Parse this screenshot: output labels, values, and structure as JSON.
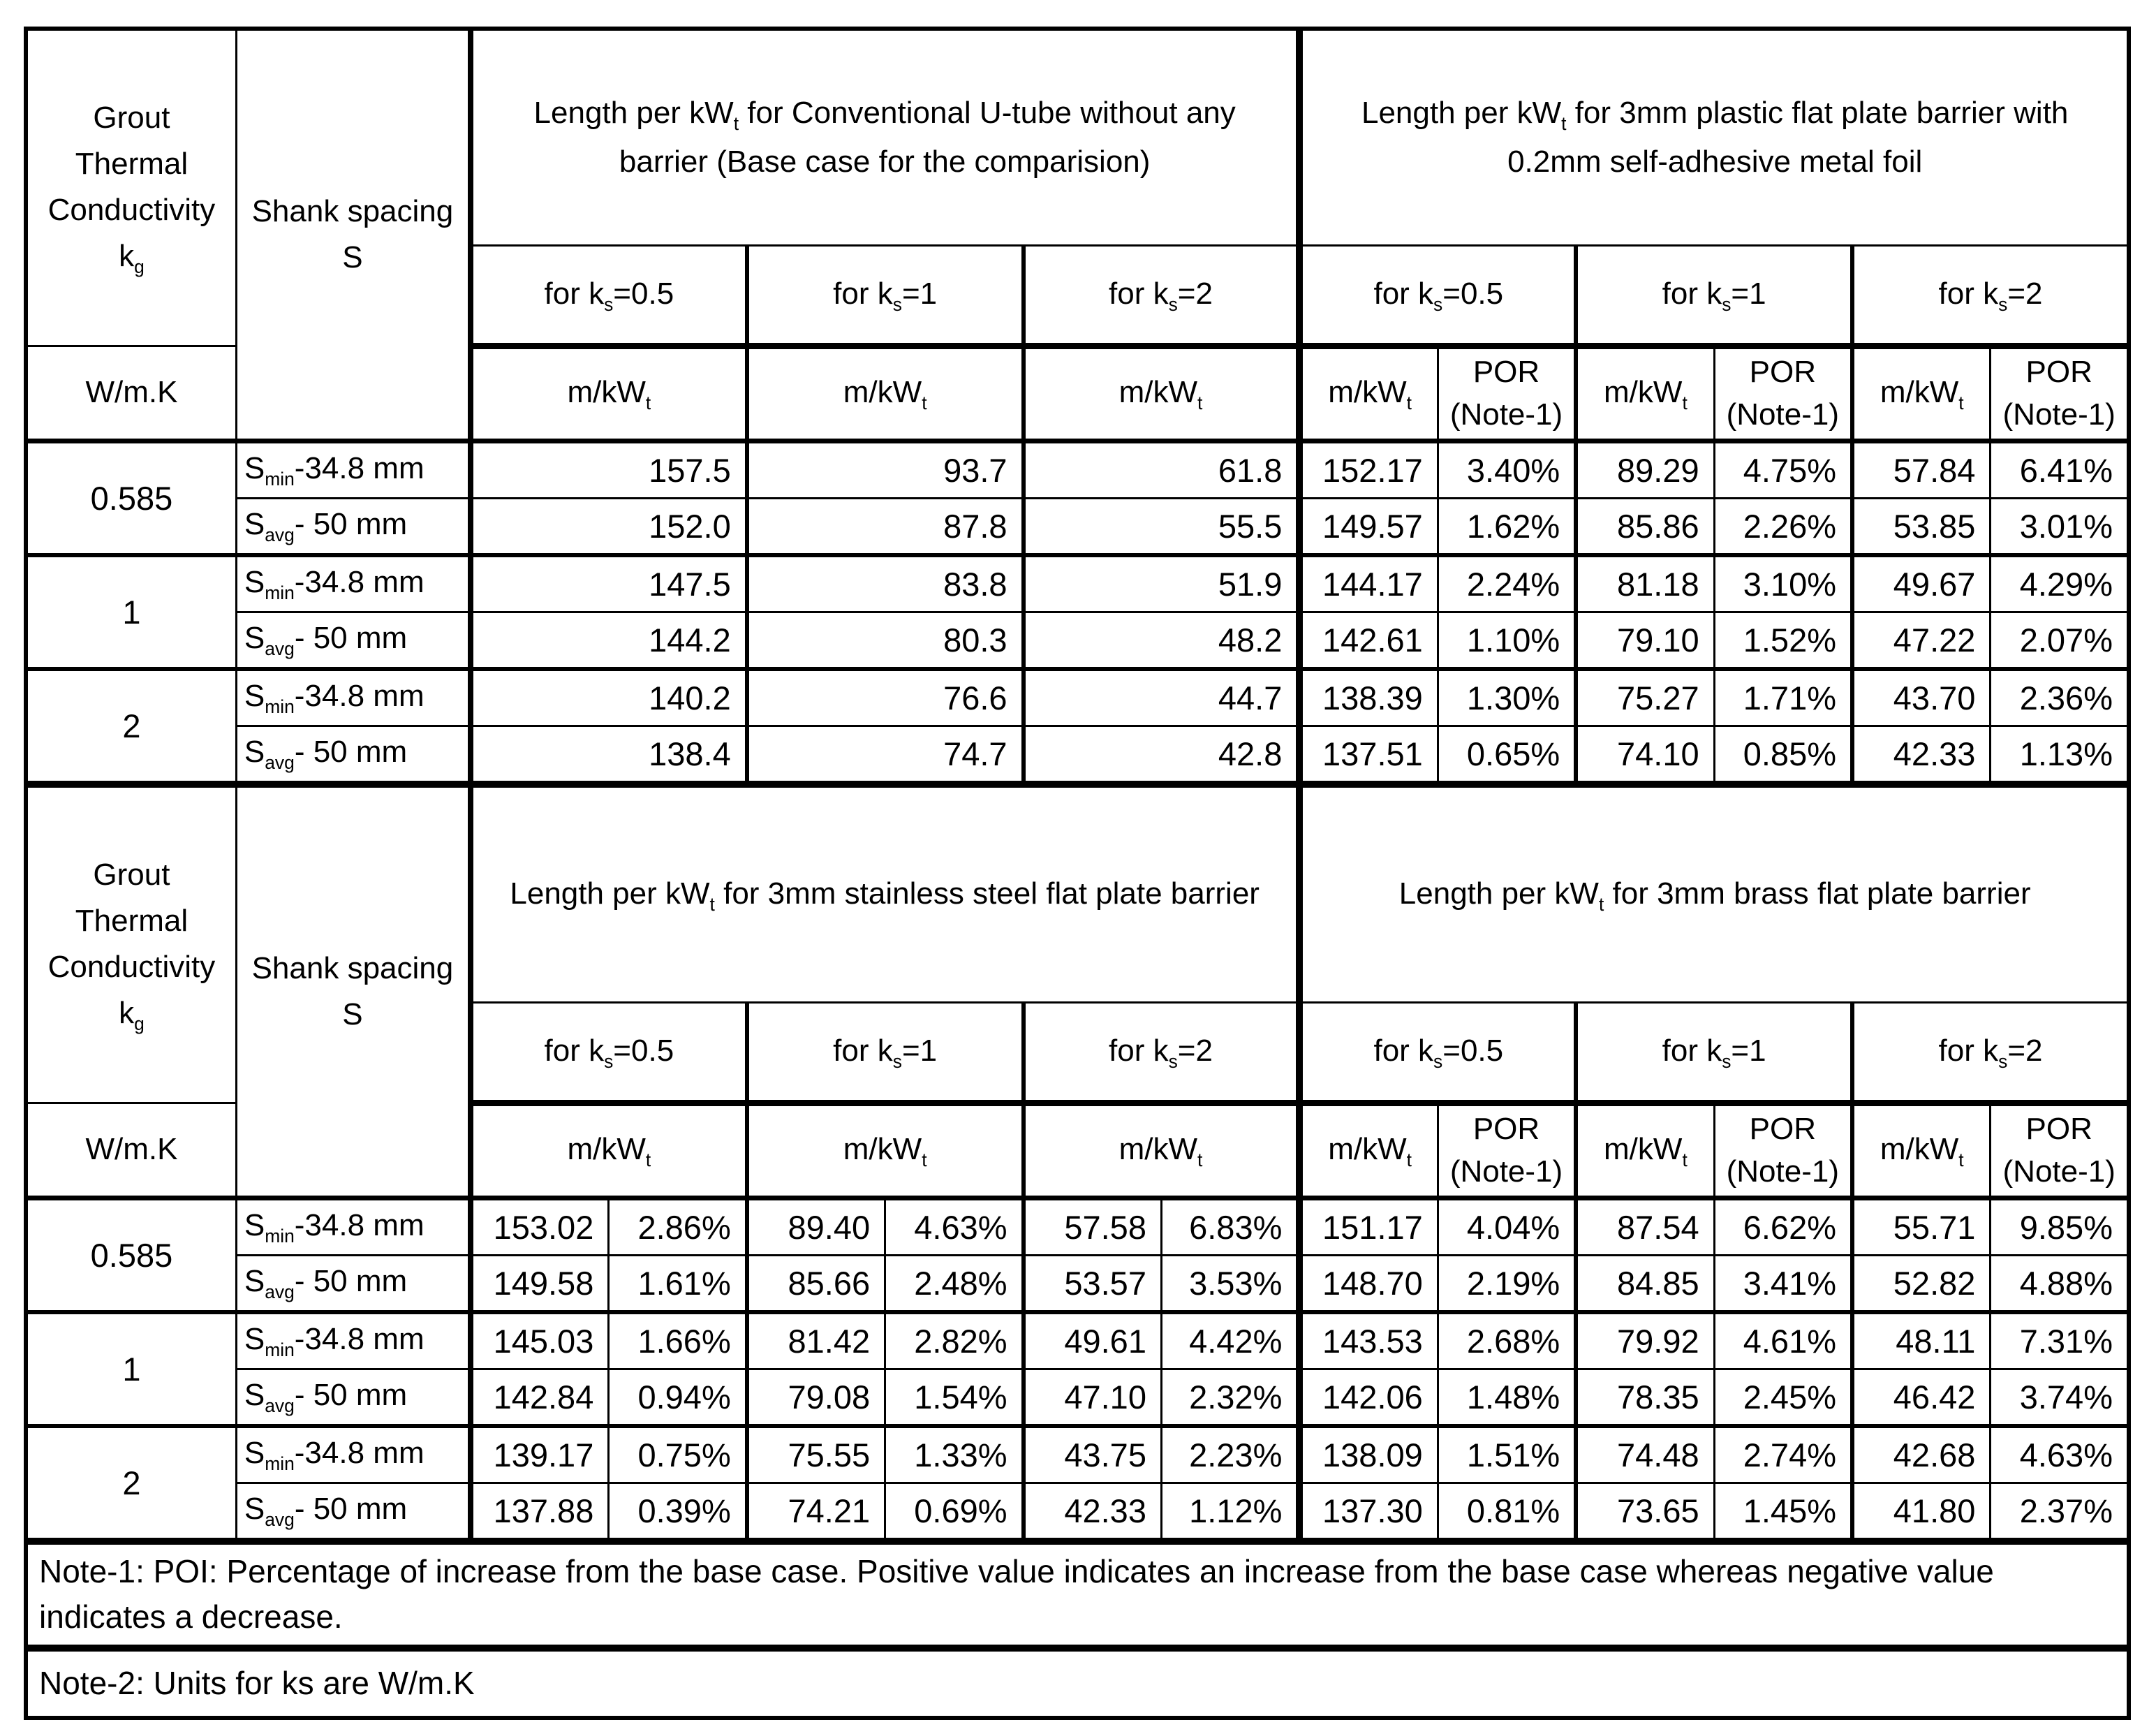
{
  "common": {
    "grout_title": "Grout Thermal Conductivity",
    "grout_symbol": "k<sub>g</sub>",
    "grout_unit": "W/m.K",
    "shank_title": "Shank spacing",
    "shank_symbol": "S",
    "ks_cols": [
      "for k<sub>s</sub>=0.5",
      "for k<sub>s</sub>=1",
      "for k<sub>s</sub>=2"
    ],
    "unit_m": "m/kW<sub>t</sub>",
    "unit_por": "POR (Note-1)",
    "shank_min": "S<sub>min</sub>-34.8 mm",
    "shank_avg": "S<sub>avg</sub>- 50 mm",
    "kg_values": [
      "0.585",
      "1",
      "2"
    ]
  },
  "sections": [
    {
      "title_left": "Length per kW<sub>t</sub> for Conventional U-tube without any barrier (Base case for the comparision)",
      "title_right": "Length per kW<sub>t</sub> for 3mm plastic flat plate barrier with 0.2mm self-adhesive metal foil",
      "rows": [
        {
          "left": [
            "157.5",
            "93.7",
            "61.8"
          ],
          "right": [
            "152.17",
            "3.40%",
            "89.29",
            "4.75%",
            "57.84",
            "6.41%"
          ]
        },
        {
          "left": [
            "152.0",
            "87.8",
            "55.5"
          ],
          "right": [
            "149.57",
            "1.62%",
            "85.86",
            "2.26%",
            "53.85",
            "3.01%"
          ]
        },
        {
          "left": [
            "147.5",
            "83.8",
            "51.9"
          ],
          "right": [
            "144.17",
            "2.24%",
            "81.18",
            "3.10%",
            "49.67",
            "4.29%"
          ]
        },
        {
          "left": [
            "144.2",
            "80.3",
            "48.2"
          ],
          "right": [
            "142.61",
            "1.10%",
            "79.10",
            "1.52%",
            "47.22",
            "2.07%"
          ]
        },
        {
          "left": [
            "140.2",
            "76.6",
            "44.7"
          ],
          "right": [
            "138.39",
            "1.30%",
            "75.27",
            "1.71%",
            "43.70",
            "2.36%"
          ]
        },
        {
          "left": [
            "138.4",
            "74.7",
            "42.8"
          ],
          "right": [
            "137.51",
            "0.65%",
            "74.10",
            "0.85%",
            "42.33",
            "1.13%"
          ]
        }
      ]
    },
    {
      "title_left": "Length per kW<sub>t</sub> for 3mm stainless steel flat plate barrier",
      "title_right": "Length per kW<sub>t</sub> for 3mm brass flat plate barrier",
      "rows": [
        {
          "left": [
            "153.02",
            "2.86%",
            "89.40",
            "4.63%",
            "57.58",
            "6.83%"
          ],
          "right": [
            "151.17",
            "4.04%",
            "87.54",
            "6.62%",
            "55.71",
            "9.85%"
          ]
        },
        {
          "left": [
            "149.58",
            "1.61%",
            "85.66",
            "2.48%",
            "53.57",
            "3.53%"
          ],
          "right": [
            "148.70",
            "2.19%",
            "84.85",
            "3.41%",
            "52.82",
            "4.88%"
          ]
        },
        {
          "left": [
            "145.03",
            "1.66%",
            "81.42",
            "2.82%",
            "49.61",
            "4.42%"
          ],
          "right": [
            "143.53",
            "2.68%",
            "79.92",
            "4.61%",
            "48.11",
            "7.31%"
          ]
        },
        {
          "left": [
            "142.84",
            "0.94%",
            "79.08",
            "1.54%",
            "47.10",
            "2.32%"
          ],
          "right": [
            "142.06",
            "1.48%",
            "78.35",
            "2.45%",
            "46.42",
            "3.74%"
          ]
        },
        {
          "left": [
            "139.17",
            "0.75%",
            "75.55",
            "1.33%",
            "43.75",
            "2.23%"
          ],
          "right": [
            "138.09",
            "1.51%",
            "74.48",
            "2.74%",
            "42.68",
            "4.63%"
          ]
        },
        {
          "left": [
            "137.88",
            "0.39%",
            "74.21",
            "0.69%",
            "42.33",
            "1.12%"
          ],
          "right": [
            "137.30",
            "0.81%",
            "73.65",
            "1.45%",
            "41.80",
            "2.37%"
          ]
        }
      ]
    }
  ],
  "notes": {
    "note1": "Note-1: POI: Percentage of increase from the base case. Positive value indicates an increase from the base case whereas negative value indicates a decrease.",
    "note2": "Note-2: Units for ks are W/m.K"
  }
}
